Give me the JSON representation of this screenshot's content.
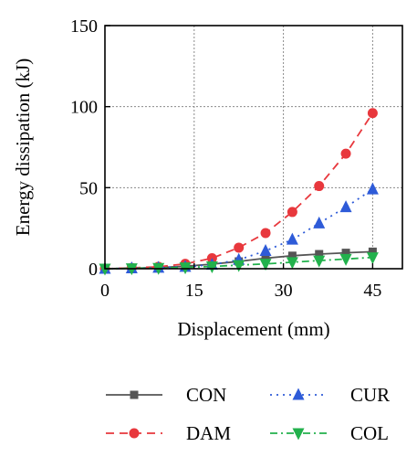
{
  "chart_data": {
    "type": "line",
    "xlabel": "Displacement (mm)",
    "ylabel": "Energy dissipation (kJ)",
    "xlim": [
      0,
      50
    ],
    "ylim": [
      0,
      150
    ],
    "x_ticks": [
      0,
      15,
      30,
      45
    ],
    "y_ticks": [
      0,
      50,
      100,
      150
    ],
    "x_tick_labels": [
      "0",
      "15",
      "30",
      "45"
    ],
    "y_tick_labels": [
      "0",
      "50",
      "100",
      "150"
    ],
    "grid": true,
    "legend_position": "below",
    "series": [
      {
        "name": "CON",
        "color": "#555555",
        "marker": "square",
        "line": "solid",
        "x": [
          0,
          4.5,
          9,
          13.5,
          18,
          22.5,
          27,
          31.5,
          36,
          40.5,
          45
        ],
        "y": [
          0,
          0.3,
          0.7,
          1.5,
          2.8,
          4.5,
          6.5,
          8,
          9,
          9.8,
          10.5
        ]
      },
      {
        "name": "DAM",
        "color": "#e8383d",
        "marker": "circle",
        "line": "dashed",
        "x": [
          0,
          4.5,
          9,
          13.5,
          18,
          22.5,
          27,
          31.5,
          36,
          40.5,
          45
        ],
        "y": [
          0,
          0.5,
          1.2,
          3,
          6.5,
          13,
          22,
          35,
          51,
          71,
          96
        ]
      },
      {
        "name": "CUR",
        "color": "#2e5bd8",
        "marker": "triangle-up",
        "line": "dotted",
        "x": [
          0,
          4.5,
          9,
          13.5,
          18,
          22.5,
          27,
          31.5,
          36,
          40.5,
          45
        ],
        "y": [
          0,
          0.3,
          0.6,
          1.2,
          2.5,
          5.5,
          11,
          18,
          28,
          38,
          49
        ]
      },
      {
        "name": "COL",
        "color": "#22b14c",
        "marker": "triangle-down",
        "line": "dashdot",
        "x": [
          0,
          4.5,
          9,
          13.5,
          18,
          22.5,
          27,
          31.5,
          36,
          40.5,
          45
        ],
        "y": [
          0,
          0.2,
          0.4,
          0.8,
          1.4,
          2.2,
          3,
          4,
          5,
          6,
          7
        ]
      }
    ]
  }
}
